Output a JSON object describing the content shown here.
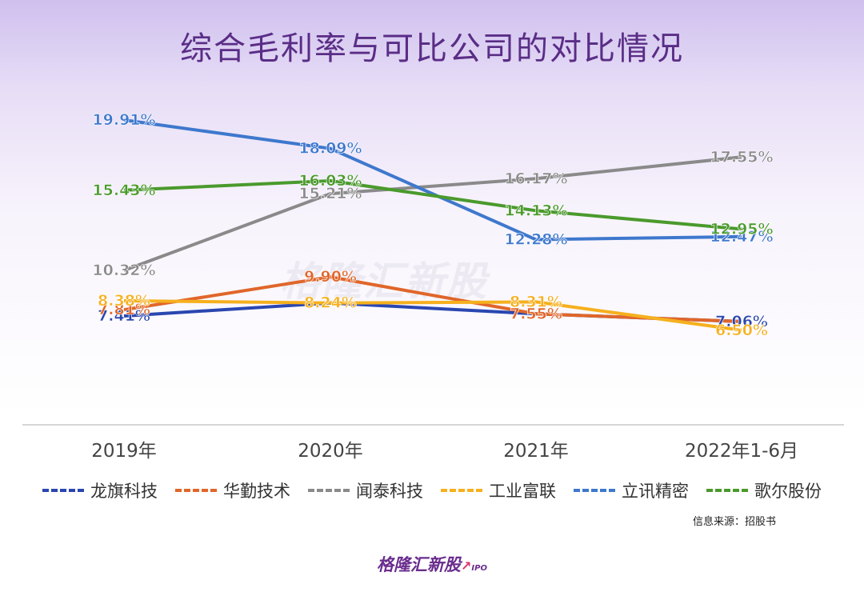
{
  "title": "综合毛利率与可比公司的对比情况",
  "source": "信息来源：招股书",
  "watermark": "格隆汇新股",
  "footer_logo": {
    "brand": "格隆汇新股",
    "suffix": "IPO"
  },
  "chart_data": {
    "type": "line",
    "title": "综合毛利率与可比公司的对比情况",
    "categories": [
      "2019年",
      "2020年",
      "2021年",
      "2022年1-6月"
    ],
    "unit": "%",
    "ylim": [
      0,
      24
    ],
    "grid": false,
    "legend_position": "bottom",
    "series": [
      {
        "name": "龙旗科技",
        "values": [
          7.41,
          8.24,
          7.55,
          7.06
        ],
        "labels": [
          "7.41%",
          "8.24%",
          "7.55%",
          "7.06%"
        ],
        "color": "#2a46b0"
      },
      {
        "name": "华勤技术",
        "values": [
          7.81,
          9.9,
          7.55,
          7.06
        ],
        "labels": [
          "7.81%",
          "9.90%",
          "7.55%",
          ""
        ],
        "color": "#e0662a"
      },
      {
        "name": "闻泰科技",
        "values": [
          10.32,
          15.21,
          16.17,
          17.55
        ],
        "labels": [
          "10.32%",
          "15.21%",
          "16.17%",
          "17.55%"
        ],
        "color": "#8a8a8a"
      },
      {
        "name": "工业富联",
        "values": [
          8.38,
          8.24,
          8.31,
          6.5
        ],
        "labels": [
          "8.38%",
          "8.24%",
          "8.31%",
          "6.50%"
        ],
        "color": "#f6b01e"
      },
      {
        "name": "立讯精密",
        "values": [
          19.91,
          18.09,
          12.28,
          12.47
        ],
        "labels": [
          "19.91%",
          "18.09%",
          "12.28%",
          "12.47%"
        ],
        "color": "#3e78cd"
      },
      {
        "name": "歌尔股份",
        "values": [
          15.43,
          16.03,
          14.13,
          12.95
        ],
        "labels": [
          "15.43%",
          "16.03%",
          "14.13%",
          "12.95%"
        ],
        "color": "#4a9a2c"
      }
    ]
  }
}
